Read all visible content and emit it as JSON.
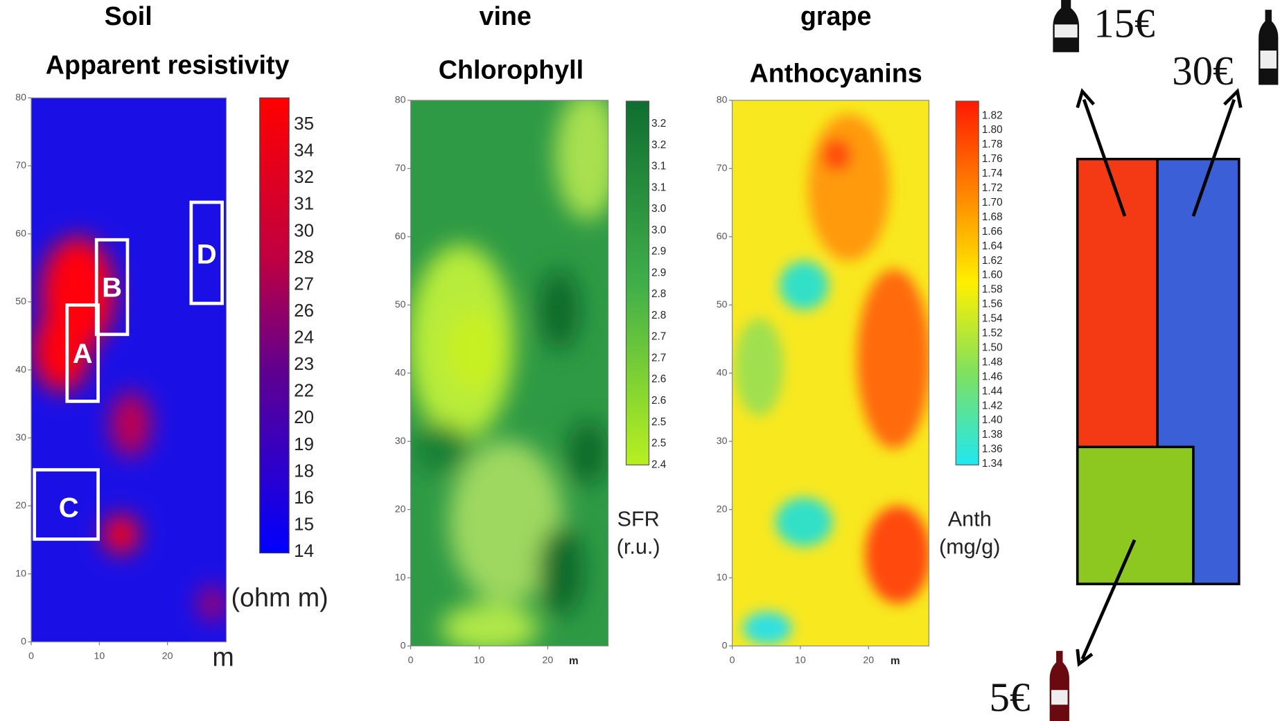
{
  "panels": [
    {
      "header": "Soil",
      "title": "Apparent resistivity",
      "yticks": [
        "0",
        "10",
        "20",
        "30",
        "40",
        "50",
        "60",
        "70",
        "80"
      ],
      "xticks": [
        "0",
        "10",
        "20"
      ],
      "x_unit": "m",
      "colorbar": [
        "35",
        "34",
        "32",
        "31",
        "30",
        "28",
        "27",
        "26",
        "24",
        "23",
        "22",
        "20",
        "19",
        "18",
        "16",
        "15",
        "14"
      ],
      "unit": [
        "(ohm m)"
      ],
      "zones": [
        "A",
        "B",
        "C",
        "D"
      ]
    },
    {
      "header": "vine",
      "title": "Chlorophyll",
      "yticks": [
        "0",
        "10",
        "20",
        "30",
        "40",
        "50",
        "60",
        "70",
        "80"
      ],
      "xticks": [
        "0",
        "10",
        "20"
      ],
      "x_unit": "m",
      "colorbar": [
        "3.2",
        "3.2",
        "3.1",
        "3.1",
        "3.0",
        "3.0",
        "2.9",
        "2.9",
        "2.8",
        "2.8",
        "2.7",
        "2.7",
        "2.6",
        "2.6",
        "2.5",
        "2.5",
        "2.4"
      ],
      "unit": [
        "SFR",
        "(r.u.)"
      ]
    },
    {
      "header": "grape",
      "title": "Anthocyanins",
      "yticks": [
        "0",
        "10",
        "20",
        "30",
        "40",
        "50",
        "60",
        "70",
        "80"
      ],
      "xticks": [
        "0",
        "10",
        "20"
      ],
      "x_unit": "m",
      "colorbar": [
        "1.82",
        "1.80",
        "1.78",
        "1.76",
        "1.74",
        "1.72",
        "1.70",
        "1.68",
        "1.66",
        "1.64",
        "1.62",
        "1.60",
        "1.58",
        "1.56",
        "1.54",
        "1.52",
        "1.50",
        "1.48",
        "1.46",
        "1.44",
        "1.42",
        "1.40",
        "1.38",
        "1.36",
        "1.34"
      ],
      "unit": [
        "Anth",
        "(mg/g)"
      ]
    }
  ],
  "prices": [
    "15€",
    "30€",
    "5€"
  ]
}
